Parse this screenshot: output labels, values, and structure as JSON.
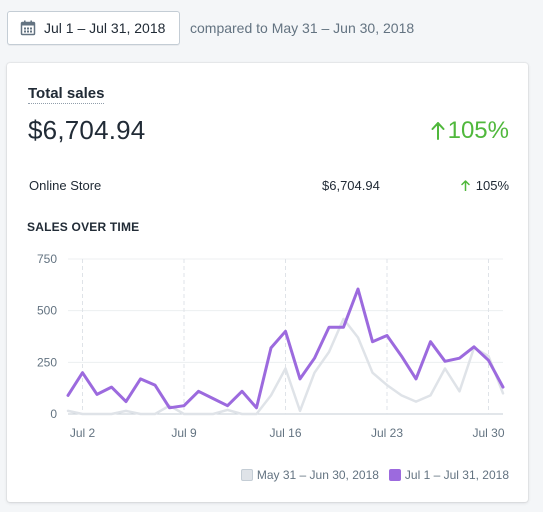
{
  "header": {
    "date_range_label": "Jul 1 – Jul 31, 2018",
    "compare_text": "compared to May 31 – Jun 30, 2018"
  },
  "card": {
    "title": "Total sales",
    "total": "$6,704.94",
    "change": "105%",
    "rows": [
      {
        "name": "Online Store",
        "value": "$6,704.94",
        "change": "105%"
      }
    ],
    "chart_title": "SALES OVER TIME"
  },
  "colors": {
    "current": "#9c6ade",
    "previous": "#dfe3e8",
    "positive": "#50b83c"
  },
  "chart_data": {
    "type": "line",
    "x_tick_labels": [
      "Jul 2",
      "Jul 9",
      "Jul 16",
      "Jul 23",
      "Jul 30"
    ],
    "x_tick_days": [
      2,
      9,
      16,
      23,
      30
    ],
    "y_ticks": [
      0,
      250,
      500,
      750
    ],
    "ylim": [
      0,
      750
    ],
    "xlim": [
      1,
      31
    ],
    "grid": true,
    "legend_position": "bottom-right",
    "series": [
      {
        "name": "May 31 – Jun 30, 2018",
        "role": "previous",
        "x": [
          1,
          2,
          3,
          4,
          5,
          6,
          7,
          8,
          9,
          10,
          11,
          12,
          13,
          14,
          15,
          16,
          17,
          18,
          19,
          20,
          21,
          22,
          23,
          24,
          25,
          26,
          27,
          28,
          29,
          30,
          31
        ],
        "values": [
          15,
          0,
          0,
          0,
          15,
          0,
          0,
          40,
          0,
          0,
          0,
          20,
          0,
          0,
          90,
          220,
          15,
          200,
          300,
          460,
          370,
          200,
          140,
          90,
          60,
          90,
          220,
          110,
          320,
          280,
          100
        ]
      },
      {
        "name": "Jul 1 – Jul 31, 2018",
        "role": "current",
        "x": [
          1,
          2,
          3,
          4,
          5,
          6,
          7,
          8,
          9,
          10,
          11,
          12,
          13,
          14,
          15,
          16,
          17,
          18,
          19,
          20,
          21,
          22,
          23,
          24,
          25,
          26,
          27,
          28,
          29,
          30,
          31
        ],
        "values": [
          90,
          200,
          95,
          130,
          60,
          170,
          140,
          30,
          40,
          110,
          75,
          40,
          110,
          30,
          320,
          400,
          170,
          270,
          420,
          420,
          605,
          350,
          380,
          280,
          170,
          350,
          255,
          270,
          325,
          260,
          130
        ]
      }
    ]
  }
}
